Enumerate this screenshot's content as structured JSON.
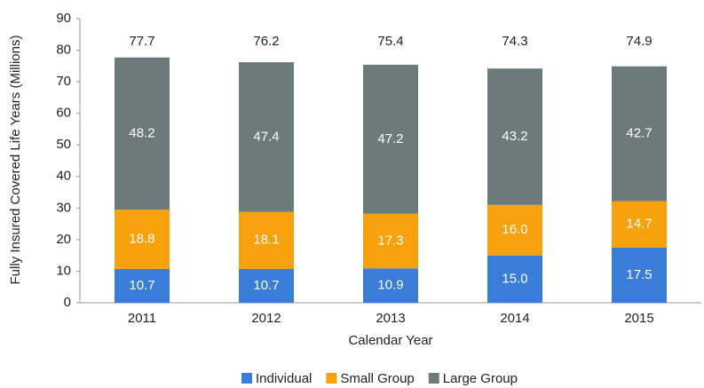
{
  "chart_data": {
    "type": "stacked_bar",
    "y_label": "Fully Insured Covered Life Years (Millions)",
    "x_label": "Calendar Year",
    "categories": [
      "2011",
      "2012",
      "2013",
      "2014",
      "2015"
    ],
    "series": [
      {
        "name": "Individual",
        "color": "#3a7dd9",
        "values": [
          10.7,
          10.7,
          10.9,
          15.0,
          17.5
        ],
        "value_labels": [
          "10.7",
          "10.7",
          "10.9",
          "15.0",
          "17.5"
        ]
      },
      {
        "name": "Small Group",
        "color": "#f7a20d",
        "values": [
          18.8,
          18.1,
          17.3,
          16.0,
          14.7
        ],
        "value_labels": [
          "18.8",
          "18.1",
          "17.3",
          "16.0",
          "14.7"
        ]
      },
      {
        "name": "Large Group",
        "color": "#6d7a7a",
        "values": [
          48.2,
          47.4,
          47.2,
          43.2,
          42.7
        ],
        "value_labels": [
          "48.2",
          "47.4",
          "47.2",
          "43.2",
          "42.7"
        ]
      }
    ],
    "totals": [
      77.7,
      76.2,
      75.4,
      74.3,
      74.9
    ],
    "ylim": [
      0,
      90
    ],
    "yticks": [
      0,
      10,
      20,
      30,
      40,
      50,
      60,
      70,
      80,
      90
    ],
    "grid": false
  }
}
